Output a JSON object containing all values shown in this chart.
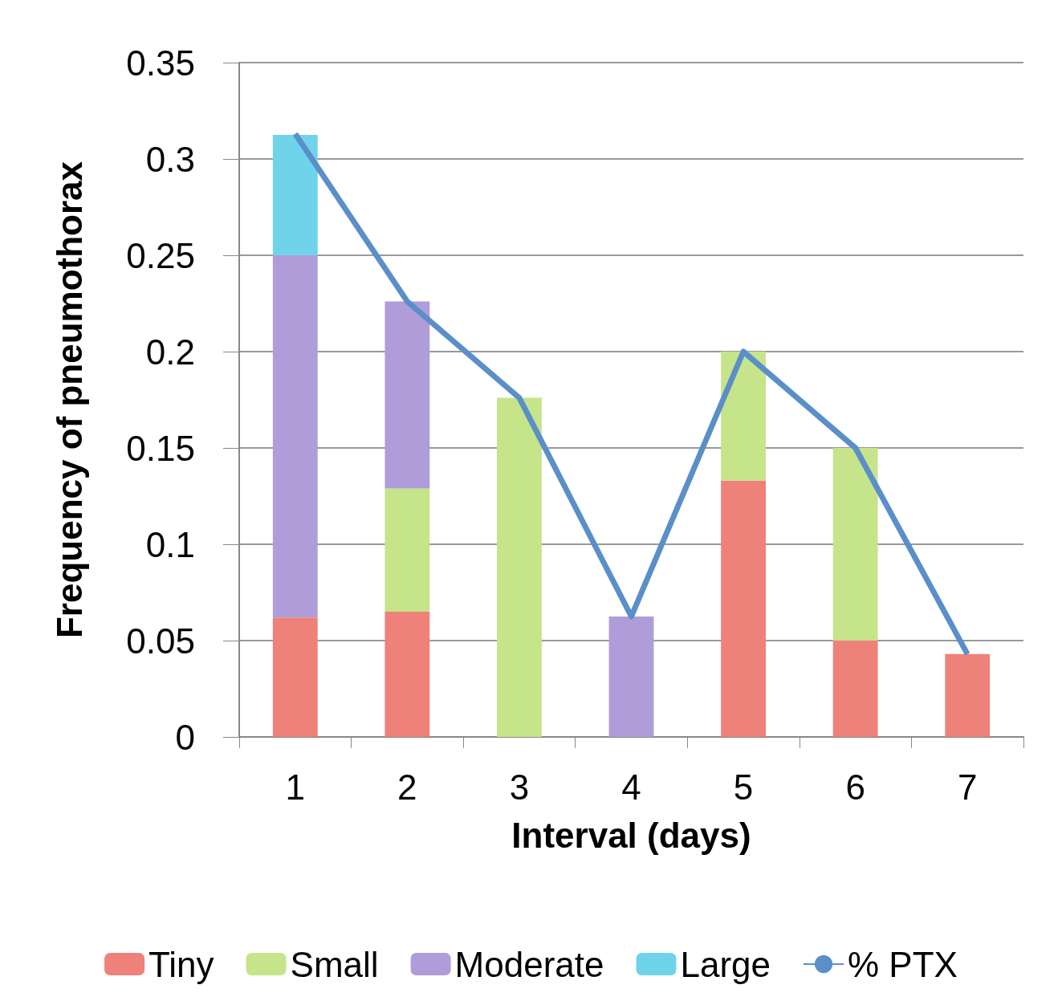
{
  "chart_data": {
    "type": "bar",
    "stacked": true,
    "xlabel": "Interval (days)",
    "ylabel": "Frequency of pneumothorax",
    "categories": [
      "1",
      "2",
      "3",
      "4",
      "5",
      "6",
      "7"
    ],
    "series": [
      {
        "name": "Tiny",
        "color": "#ee8179",
        "values": [
          0.062,
          0.065,
          null,
          null,
          0.133,
          0.05,
          0.043
        ]
      },
      {
        "name": "Small",
        "color": "#c6e48a",
        "values": [
          null,
          0.064,
          0.176,
          null,
          0.067,
          0.1,
          null
        ]
      },
      {
        "name": "Moderate",
        "color": "#b09cd8",
        "values": [
          0.188,
          0.097,
          null,
          0.0625,
          null,
          null,
          null
        ]
      },
      {
        "name": "Large",
        "color": "#6fd4ea",
        "values": [
          0.0625,
          null,
          null,
          null,
          null,
          null,
          null
        ]
      },
      {
        "name": "% PTX",
        "type": "line",
        "color": "#5b8fc9",
        "values": [
          0.313,
          0.226,
          0.176,
          0.0625,
          0.2,
          0.15,
          0.043
        ]
      }
    ],
    "ylim": [
      0,
      0.35
    ],
    "yticks": [
      0,
      0.05,
      0.1,
      0.15,
      0.2,
      0.25,
      0.3,
      0.35
    ],
    "grid": "y",
    "legend": "bottom",
    "marker": "none"
  }
}
